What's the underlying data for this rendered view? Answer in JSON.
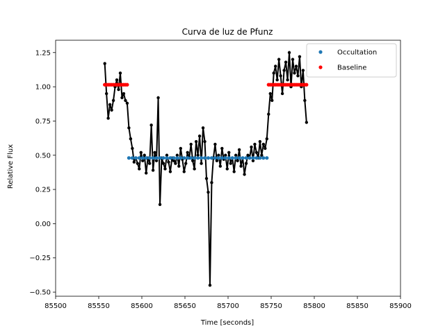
{
  "chart_data": {
    "type": "scatter",
    "title": "Curva de luz de Pfunz",
    "xlabel": "Time [seconds]",
    "ylabel": "Relative Flux",
    "xlim": [
      85500,
      85900
    ],
    "ylim": [
      -0.53,
      1.34
    ],
    "xticks": [
      85500,
      85550,
      85600,
      85650,
      85700,
      85750,
      85800,
      85850,
      85900
    ],
    "yticks": [
      -0.5,
      -0.25,
      0.0,
      0.25,
      0.5,
      0.75,
      1.0,
      1.25
    ],
    "xtick_labels": [
      "85500",
      "85550",
      "85600",
      "85650",
      "85700",
      "85750",
      "85800",
      "85850",
      "85900"
    ],
    "ytick_labels": [
      "−0.50",
      "−0.25",
      "0.00",
      "0.25",
      "0.50",
      "0.75",
      "1.00",
      "1.25"
    ],
    "grid": false,
    "legend_position": "top-right",
    "legend": [
      {
        "name": "Occultation",
        "color": "#1f77b4"
      },
      {
        "name": "Baseline",
        "color": "#ff0000"
      }
    ],
    "series": [
      {
        "style": "line-with-dots",
        "color": "#000000",
        "x": [
          85557,
          85559,
          85561,
          85563,
          85565,
          85567,
          85569,
          85571,
          85573,
          85575,
          85577,
          85579,
          85581,
          85583,
          85585,
          85587,
          85589,
          85591,
          85593,
          85595,
          85597,
          85599,
          85601,
          85603,
          85605,
          85607,
          85609,
          85611,
          85613,
          85615,
          85617,
          85619,
          85621,
          85623,
          85625,
          85627,
          85629,
          85631,
          85633,
          85635,
          85637,
          85639,
          85641,
          85643,
          85645,
          85647,
          85649,
          85651,
          85653,
          85655,
          85657,
          85659,
          85661,
          85663,
          85665,
          85667,
          85669,
          85671,
          85673,
          85675,
          85677,
          85679,
          85681,
          85683,
          85685,
          85687,
          85689,
          85691,
          85693,
          85695,
          85697,
          85699,
          85701,
          85703,
          85705,
          85707,
          85709,
          85711,
          85713,
          85715,
          85717,
          85719,
          85721,
          85723,
          85725,
          85727,
          85729,
          85731,
          85733,
          85735,
          85737,
          85739,
          85741,
          85743,
          85745,
          85747,
          85749,
          85751,
          85753,
          85755,
          85757,
          85759,
          85761,
          85763,
          85765,
          85767,
          85769,
          85771,
          85773,
          85775,
          85777,
          85779,
          85781,
          85783,
          85785,
          85787,
          85789,
          85791
        ],
        "y": [
          1.17,
          0.95,
          0.77,
          0.87,
          0.83,
          0.9,
          1.0,
          1.05,
          0.98,
          1.1,
          0.92,
          0.95,
          0.9,
          0.88,
          0.7,
          0.62,
          0.55,
          0.45,
          0.48,
          0.44,
          0.4,
          0.52,
          0.46,
          0.5,
          0.37,
          0.48,
          0.44,
          0.72,
          0.39,
          0.52,
          0.46,
          0.92,
          0.14,
          0.48,
          0.44,
          0.4,
          0.5,
          0.45,
          0.38,
          0.48,
          0.46,
          0.44,
          0.5,
          0.42,
          0.55,
          0.47,
          0.38,
          0.44,
          0.52,
          0.48,
          0.58,
          0.46,
          0.4,
          0.6,
          0.5,
          0.64,
          0.44,
          0.7,
          0.6,
          0.33,
          0.23,
          -0.45,
          0.3,
          0.48,
          0.58,
          0.46,
          0.5,
          0.42,
          0.55,
          0.47,
          0.5,
          0.4,
          0.52,
          0.44,
          0.48,
          0.38,
          0.5,
          0.46,
          0.54,
          0.42,
          0.48,
          0.36,
          0.44,
          0.5,
          0.48,
          0.56,
          0.46,
          0.58,
          0.52,
          0.48,
          0.6,
          0.5,
          0.58,
          0.55,
          0.62,
          0.8,
          0.95,
          0.9,
          1.1,
          1.15,
          1.05,
          1.2,
          1.08,
          0.95,
          1.12,
          1.18,
          1.05,
          1.25,
          1.0,
          1.2,
          1.1,
          1.15,
          1.08,
          1.22,
          1.0,
          1.12,
          0.9,
          0.74
        ]
      },
      {
        "name": "Occultation",
        "style": "dots",
        "color": "#1f77b4",
        "x": [
          85585,
          85589,
          85593,
          85597,
          85601,
          85605,
          85609,
          85613,
          85617,
          85621,
          85625,
          85629,
          85633,
          85637,
          85641,
          85645,
          85649,
          85653,
          85657,
          85661,
          85665,
          85669,
          85673,
          85677,
          85681,
          85685,
          85689,
          85693,
          85697,
          85701,
          85705,
          85709,
          85713,
          85717,
          85721,
          85725,
          85729,
          85733,
          85737,
          85741,
          85745
        ],
        "y": [
          0.48,
          0.48,
          0.48,
          0.48,
          0.48,
          0.48,
          0.48,
          0.48,
          0.48,
          0.48,
          0.48,
          0.48,
          0.48,
          0.48,
          0.48,
          0.48,
          0.48,
          0.48,
          0.48,
          0.48,
          0.48,
          0.48,
          0.48,
          0.48,
          0.48,
          0.48,
          0.48,
          0.48,
          0.48,
          0.48,
          0.48,
          0.48,
          0.48,
          0.48,
          0.48,
          0.48,
          0.48,
          0.48,
          0.48,
          0.48,
          0.48
        ]
      },
      {
        "name": "Baseline",
        "style": "dots",
        "color": "#ff0000",
        "x": [
          85557,
          85559,
          85561,
          85563,
          85565,
          85567,
          85569,
          85571,
          85573,
          85575,
          85577,
          85579,
          85581,
          85583,
          85747,
          85749,
          85751,
          85753,
          85755,
          85757,
          85759,
          85761,
          85763,
          85765,
          85767,
          85769,
          85771,
          85773,
          85775,
          85777,
          85779,
          85781,
          85783,
          85785,
          85787,
          85789,
          85791
        ],
        "y": [
          1.015,
          1.015,
          1.015,
          1.015,
          1.015,
          1.015,
          1.015,
          1.015,
          1.015,
          1.015,
          1.015,
          1.015,
          1.015,
          1.015,
          1.015,
          1.015,
          1.015,
          1.015,
          1.015,
          1.015,
          1.015,
          1.015,
          1.015,
          1.015,
          1.015,
          1.015,
          1.015,
          1.015,
          1.015,
          1.015,
          1.015,
          1.015,
          1.015,
          1.015,
          1.015,
          1.015,
          1.015
        ]
      }
    ]
  }
}
